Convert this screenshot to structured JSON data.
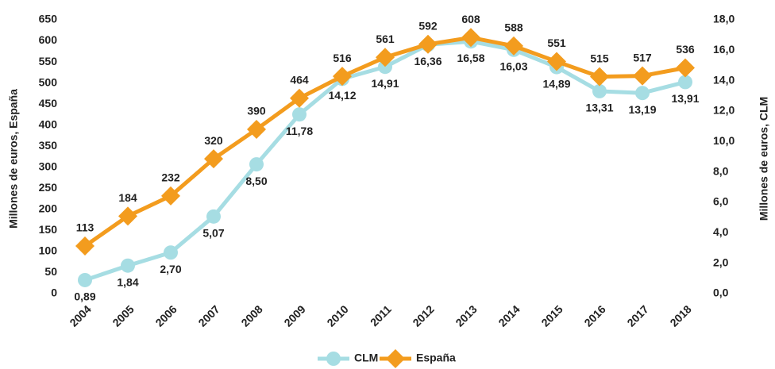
{
  "chart_data": {
    "type": "line",
    "y_label": "Millones de euros, España",
    "y2_label": "Millones de euros, CLM",
    "categories": [
      "2004",
      "2005",
      "2006",
      "2007",
      "2008",
      "2009",
      "2010",
      "2011",
      "2012",
      "2013",
      "2014",
      "2015",
      "2016",
      "2017",
      "2018"
    ],
    "series": [
      {
        "name": "CLM",
        "color": "#a6dde3",
        "axis": "y2",
        "values": [
          0.89,
          1.84,
          2.7,
          5.07,
          8.5,
          11.78,
          14.12,
          14.91,
          16.36,
          16.58,
          16.03,
          14.89,
          13.31,
          13.19,
          13.91
        ],
        "value_labels": [
          "0,89",
          "1,84",
          "2,70",
          "5,07",
          "8,50",
          "11,78",
          "14,12",
          "14,91",
          "16,36",
          "16,58",
          "16,03",
          "14,89",
          "13,31",
          "13,19",
          "13,91"
        ]
      },
      {
        "name": "España",
        "color": "#f39c1e",
        "values": [
          113,
          184,
          232,
          320,
          390,
          464,
          516,
          561,
          592,
          608,
          588,
          551,
          515,
          517,
          536
        ]
      }
    ],
    "ylim": [
      0,
      650
    ],
    "yticks": [
      0,
      50,
      100,
      150,
      200,
      250,
      300,
      350,
      400,
      450,
      500,
      550,
      600,
      650
    ],
    "y2lim": [
      0,
      18
    ],
    "y2ticks": [
      {
        "value": 0,
        "label": "0,0"
      },
      {
        "value": 2,
        "label": "2,0"
      },
      {
        "value": 4,
        "label": "4,0"
      },
      {
        "value": 6,
        "label": "6,0"
      },
      {
        "value": 8,
        "label": "8,0"
      },
      {
        "value": 10,
        "label": "10,0"
      },
      {
        "value": 12,
        "label": "12,0"
      },
      {
        "value": 14,
        "label": "14,0"
      },
      {
        "value": 16,
        "label": "16,0"
      },
      {
        "value": 18,
        "label": "18,0"
      }
    ],
    "grid": false
  }
}
